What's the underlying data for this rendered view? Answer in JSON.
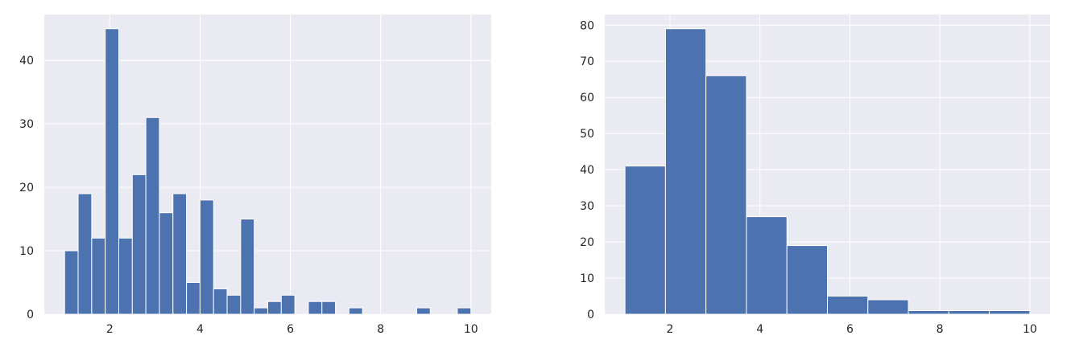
{
  "colors": {
    "background": "#eaeaf2",
    "grid": "#ffffff",
    "bar": "#4c72b0",
    "text": "#262626"
  },
  "chart_data": [
    {
      "type": "histogram",
      "grid": true,
      "xlim": [
        0.55,
        10.45
      ],
      "ylim": [
        0,
        47.25
      ],
      "xticks": [
        2,
        4,
        6,
        8,
        10
      ],
      "yticks": [
        0,
        10,
        20,
        30,
        40
      ],
      "bins": [
        {
          "x0": 1.0,
          "x1": 1.3,
          "count": 10
        },
        {
          "x0": 1.3,
          "x1": 1.6,
          "count": 19
        },
        {
          "x0": 1.6,
          "x1": 1.9,
          "count": 12
        },
        {
          "x0": 1.9,
          "x1": 2.2,
          "count": 45
        },
        {
          "x0": 2.2,
          "x1": 2.5,
          "count": 12
        },
        {
          "x0": 2.5,
          "x1": 2.8,
          "count": 22
        },
        {
          "x0": 2.8,
          "x1": 3.1,
          "count": 31
        },
        {
          "x0": 3.1,
          "x1": 3.4,
          "count": 16
        },
        {
          "x0": 3.4,
          "x1": 3.7,
          "count": 19
        },
        {
          "x0": 3.7,
          "x1": 4.0,
          "count": 5
        },
        {
          "x0": 4.0,
          "x1": 4.3,
          "count": 18
        },
        {
          "x0": 4.3,
          "x1": 4.6,
          "count": 4
        },
        {
          "x0": 4.6,
          "x1": 4.9,
          "count": 3
        },
        {
          "x0": 4.9,
          "x1": 5.2,
          "count": 15
        },
        {
          "x0": 5.2,
          "x1": 5.5,
          "count": 1
        },
        {
          "x0": 5.5,
          "x1": 5.8,
          "count": 2
        },
        {
          "x0": 5.8,
          "x1": 6.1,
          "count": 3
        },
        {
          "x0": 6.1,
          "x1": 6.4,
          "count": 0
        },
        {
          "x0": 6.4,
          "x1": 6.7,
          "count": 2
        },
        {
          "x0": 6.7,
          "x1": 7.0,
          "count": 2
        },
        {
          "x0": 7.0,
          "x1": 7.3,
          "count": 0
        },
        {
          "x0": 7.3,
          "x1": 7.6,
          "count": 1
        },
        {
          "x0": 7.6,
          "x1": 7.9,
          "count": 0
        },
        {
          "x0": 7.9,
          "x1": 8.2,
          "count": 0
        },
        {
          "x0": 8.2,
          "x1": 8.5,
          "count": 0
        },
        {
          "x0": 8.5,
          "x1": 8.8,
          "count": 0
        },
        {
          "x0": 8.8,
          "x1": 9.1,
          "count": 1
        },
        {
          "x0": 9.1,
          "x1": 9.4,
          "count": 0
        },
        {
          "x0": 9.4,
          "x1": 9.7,
          "count": 0
        },
        {
          "x0": 9.7,
          "x1": 10.0,
          "count": 1
        }
      ]
    },
    {
      "type": "histogram",
      "grid": true,
      "xlim": [
        0.55,
        10.45
      ],
      "ylim": [
        0,
        82.95
      ],
      "xticks": [
        2,
        4,
        6,
        8,
        10
      ],
      "yticks": [
        0,
        10,
        20,
        30,
        40,
        50,
        60,
        70,
        80
      ],
      "bins": [
        {
          "x0": 1.0,
          "x1": 1.9,
          "count": 41
        },
        {
          "x0": 1.9,
          "x1": 2.8,
          "count": 79
        },
        {
          "x0": 2.8,
          "x1": 3.7,
          "count": 66
        },
        {
          "x0": 3.7,
          "x1": 4.6,
          "count": 27
        },
        {
          "x0": 4.6,
          "x1": 5.5,
          "count": 19
        },
        {
          "x0": 5.5,
          "x1": 6.4,
          "count": 5
        },
        {
          "x0": 6.4,
          "x1": 7.3,
          "count": 4
        },
        {
          "x0": 7.3,
          "x1": 8.2,
          "count": 1
        },
        {
          "x0": 8.2,
          "x1": 9.1,
          "count": 1
        },
        {
          "x0": 9.1,
          "x1": 10.0,
          "count": 1
        }
      ]
    }
  ]
}
